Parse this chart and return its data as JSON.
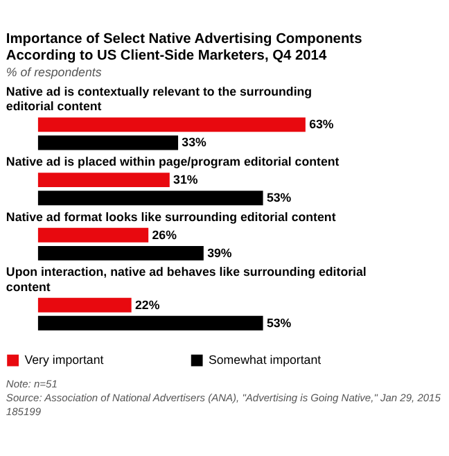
{
  "chart_data": {
    "type": "bar",
    "orientation": "horizontal",
    "title": "Importance of Select Native Advertising Components According to US Client-Side Marketers, Q4 2014",
    "subtitle": "% of respondents",
    "categories": [
      "Native ad is contextually relevant to the surrounding editorial content",
      "Native ad is placed within page/program editorial content",
      "Native ad format looks like surrounding editorial content",
      "Upon interaction, native ad behaves like surrounding editorial content"
    ],
    "series": [
      {
        "name": "Very important",
        "color": "#e8090f",
        "values": [
          63,
          31,
          26,
          22
        ],
        "value_labels": [
          "63%",
          "31%",
          "26%",
          "22%"
        ]
      },
      {
        "name": "Somewhat important",
        "color": "#000000",
        "values": [
          33,
          53,
          39,
          53
        ],
        "value_labels": [
          "33%",
          "53%",
          "39%",
          "53%"
        ]
      }
    ],
    "legend": "bottom",
    "annotations": [
      "Note: n=51",
      "Source: Association of National Advertisers (ANA), \"Advertising is Going Native,\" Jan 29, 2015",
      "185199"
    ]
  }
}
